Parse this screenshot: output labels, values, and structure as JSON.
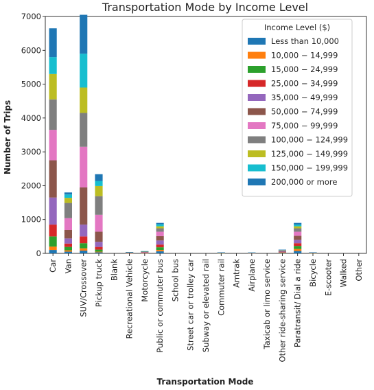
{
  "chart_data": {
    "type": "bar",
    "stacked": true,
    "title": "Transportation Mode by Income Level",
    "xlabel": "Transportation Mode",
    "ylabel": "Number of Trips",
    "ylim": [
      0,
      7000
    ],
    "yticks": [
      0,
      1000,
      2000,
      3000,
      4000,
      5000,
      6000,
      7000
    ],
    "grid": false,
    "legend": {
      "title": "Income Level ($)",
      "placement": "top-right"
    },
    "categories": [
      "Car",
      "Van",
      "SUV/Crossover",
      "Pickup truck",
      "Blank",
      "Recreational Vehicle",
      "Motorcycle",
      "Public or commuter bus",
      "School bus",
      "Street car or trolley car",
      "Subway or elevated rail",
      "Commuter rail",
      "Amtrak",
      "Airplane",
      "Taxicab or limo service",
      "Other ride-sharing service",
      "Paratransit/ Dial a ride",
      "Bicycle",
      "E-scooter",
      "Walked",
      "Other"
    ],
    "series": [
      {
        "name": "Less than 10,000",
        "color": "#1f77b4",
        "values": [
          100,
          50,
          80,
          30,
          0,
          2,
          3,
          60,
          0,
          0,
          0,
          3,
          0,
          2,
          0,
          8,
          70,
          2,
          0,
          0,
          0
        ]
      },
      {
        "name": "10,000 − 14,999",
        "color": "#ff7f0e",
        "values": [
          100,
          40,
          70,
          20,
          0,
          2,
          3,
          40,
          0,
          0,
          0,
          2,
          0,
          2,
          0,
          7,
          60,
          2,
          0,
          0,
          0
        ]
      },
      {
        "name": "15,000 − 24,999",
        "color": "#2ca02c",
        "values": [
          300,
          100,
          150,
          60,
          0,
          3,
          5,
          80,
          0,
          0,
          0,
          3,
          0,
          2,
          0,
          10,
          90,
          3,
          0,
          0,
          0
        ]
      },
      {
        "name": "25,000 − 34,999",
        "color": "#d62728",
        "values": [
          350,
          100,
          200,
          80,
          0,
          3,
          5,
          80,
          0,
          0,
          0,
          3,
          0,
          2,
          0,
          10,
          80,
          3,
          0,
          0,
          0
        ]
      },
      {
        "name": "35,000 − 49,999",
        "color": "#9467bd",
        "values": [
          800,
          150,
          350,
          150,
          0,
          5,
          8,
          120,
          0,
          0,
          0,
          3,
          0,
          3,
          0,
          15,
          100,
          4,
          0,
          0,
          0
        ]
      },
      {
        "name": "50,000 − 74,999",
        "color": "#8c564b",
        "values": [
          1100,
          250,
          1100,
          300,
          0,
          6,
          10,
          130,
          0,
          0,
          0,
          3,
          0,
          3,
          0,
          15,
          120,
          4,
          0,
          0,
          0
        ]
      },
      {
        "name": "75,000 − 99,999",
        "color": "#e377c2",
        "values": [
          900,
          350,
          1200,
          500,
          0,
          6,
          10,
          130,
          0,
          0,
          0,
          3,
          0,
          3,
          0,
          15,
          120,
          4,
          0,
          0,
          0
        ]
      },
      {
        "name": "100,000 − 124,999",
        "color": "#7f7f7f",
        "values": [
          900,
          450,
          1000,
          550,
          0,
          5,
          8,
          100,
          0,
          0,
          0,
          3,
          0,
          3,
          0,
          10,
          100,
          3,
          0,
          0,
          0
        ]
      },
      {
        "name": "125,000 − 149,999",
        "color": "#bcbd22",
        "values": [
          750,
          150,
          750,
          300,
          0,
          3,
          5,
          60,
          0,
          0,
          0,
          2,
          0,
          2,
          0,
          7,
          60,
          2,
          0,
          0,
          0
        ]
      },
      {
        "name": "150,000 − 199,999",
        "color": "#17becf",
        "values": [
          500,
          100,
          1000,
          150,
          0,
          3,
          5,
          60,
          0,
          0,
          0,
          2,
          0,
          2,
          0,
          7,
          50,
          2,
          0,
          0,
          0
        ]
      },
      {
        "name": "200,000 or more",
        "color": "#1f77b4",
        "values": [
          850,
          60,
          1150,
          200,
          0,
          2,
          3,
          40,
          0,
          0,
          0,
          3,
          0,
          2,
          0,
          6,
          50,
          1,
          0,
          0,
          0
        ]
      }
    ]
  }
}
